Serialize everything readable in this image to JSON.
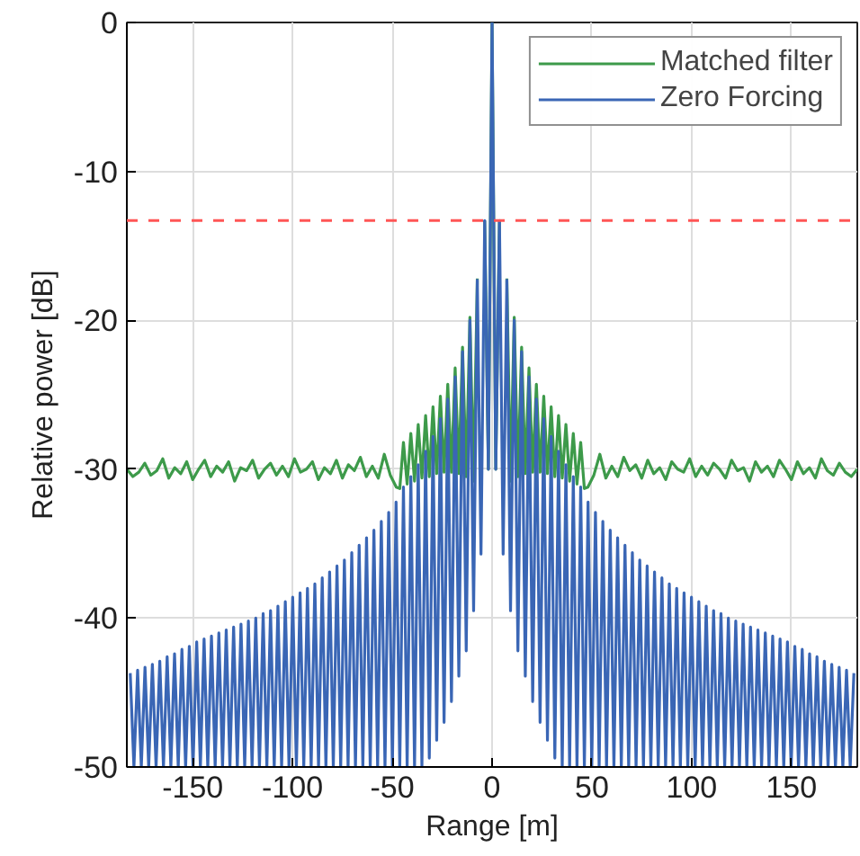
{
  "chart_data": {
    "type": "line",
    "xlabel": "Range [m]",
    "ylabel": "Relative power [dB]",
    "xlim": [
      -183,
      183
    ],
    "ylim": [
      -50,
      0
    ],
    "xticks": [
      -150,
      -100,
      -50,
      0,
      50,
      100,
      150
    ],
    "yticks": [
      -50,
      -40,
      -30,
      -20,
      -10,
      0
    ],
    "grid": true,
    "legend": "top right",
    "line_style": "solid",
    "ref_lines": [
      {
        "axis": "y",
        "value": -13.3,
        "color": "#ff5555",
        "line_style": "dashed"
      }
    ],
    "series": [
      {
        "name": "Matched filter",
        "color": "#3d9a4a",
        "x": [
          -183,
          -180,
          -177,
          -174,
          -171,
          -168,
          -165,
          -162,
          -159,
          -156,
          -153,
          -150,
          -147,
          -144,
          -141,
          -138,
          -135,
          -132,
          -129,
          -126,
          -123,
          -120,
          -117,
          -114,
          -111,
          -108,
          -105,
          -102,
          -99,
          -96,
          -93,
          -90,
          -87,
          -84,
          -81,
          -78,
          -75,
          -72,
          -69,
          -66,
          -63,
          -60,
          -57,
          -54,
          -51,
          -48,
          -46.25,
          -44.4,
          -42.55,
          -40.7,
          -38.85,
          -37,
          -35.15,
          -33.3,
          -31.45,
          -29.6,
          -27.75,
          -25.9,
          -24.05,
          -22.2,
          -20.35,
          -18.5,
          -16.65,
          -14.8,
          -12.95,
          -11.1,
          -9.25,
          -7.4,
          -5.55,
          -3.7,
          -1.85,
          0,
          1.85,
          3.7,
          5.55,
          7.4,
          9.25,
          11.1,
          12.95,
          14.8,
          16.65,
          18.5,
          20.35,
          22.2,
          24.05,
          25.9,
          27.75,
          29.6,
          31.45,
          33.3,
          35.15,
          37,
          38.85,
          40.7,
          42.55,
          44.4,
          46.25,
          48,
          51,
          54,
          57,
          60,
          63,
          66,
          69,
          72,
          75,
          78,
          81,
          84,
          87,
          90,
          93,
          96,
          99,
          102,
          105,
          108,
          111,
          114,
          117,
          120,
          123,
          126,
          129,
          132,
          135,
          138,
          141,
          144,
          147,
          150,
          153,
          156,
          159,
          162,
          165,
          168,
          171,
          174,
          177,
          180,
          183
        ],
        "values": [
          -30.0,
          -30.5,
          -30.2,
          -29.6,
          -30.4,
          -30.1,
          -29.3,
          -30.6,
          -29.9,
          -30.3,
          -29.5,
          -30.7,
          -30.0,
          -29.4,
          -30.5,
          -29.8,
          -30.2,
          -29.5,
          -30.8,
          -29.9,
          -30.1,
          -29.4,
          -30.6,
          -30.0,
          -29.6,
          -30.4,
          -29.8,
          -30.5,
          -29.3,
          -30.2,
          -30.0,
          -29.5,
          -30.7,
          -29.9,
          -30.3,
          -29.4,
          -30.6,
          -29.7,
          -30.1,
          -29.2,
          -30.5,
          -29.8,
          -30.6,
          -29.0,
          -30.4,
          -31.2,
          -31.3,
          -28.2,
          -31.0,
          -27.6,
          -30.8,
          -27.0,
          -30.6,
          -26.4,
          -30.5,
          -25.8,
          -30.3,
          -25.1,
          -30.2,
          -24.3,
          -30.2,
          -23.2,
          -30.3,
          -21.8,
          -30.5,
          -19.8,
          -30.8,
          -17.2,
          null,
          -13.3,
          -30.0,
          0,
          -30.0,
          -13.3,
          null,
          -17.2,
          -30.8,
          -19.8,
          -30.5,
          -21.8,
          -30.3,
          -23.2,
          -30.2,
          -24.3,
          -30.2,
          -25.1,
          -30.3,
          -25.8,
          -30.5,
          -26.4,
          -30.6,
          -27.0,
          -30.8,
          -27.6,
          -31.0,
          -28.2,
          -31.3,
          -31.2,
          -30.4,
          -29.0,
          -30.6,
          -29.8,
          -30.5,
          -29.2,
          -30.1,
          -29.7,
          -30.6,
          -29.4,
          -30.3,
          -29.9,
          -30.7,
          -29.5,
          -30.0,
          -30.2,
          -29.3,
          -30.5,
          -29.8,
          -30.4,
          -29.6,
          -30.0,
          -30.6,
          -29.4,
          -30.1,
          -29.9,
          -30.8,
          -29.5,
          -30.2,
          -29.8,
          -30.5,
          -29.4,
          -30.0,
          -30.7,
          -29.5,
          -30.3,
          -29.9,
          -30.6,
          -29.3,
          -30.1,
          -30.4,
          -29.6,
          -30.2,
          -30.5,
          -30.0
        ]
      },
      {
        "name": "Zero Forcing",
        "color": "#3a66b5",
        "x": [
          -181.3,
          -179.45,
          -177.6,
          -175.75,
          -173.9,
          -172.05,
          -170.2,
          -168.35,
          -166.5,
          -164.65,
          -162.8,
          -160.95,
          -159.1,
          -157.25,
          -155.4,
          -153.55,
          -151.7,
          -149.85,
          -148,
          -146.15,
          -144.3,
          -142.45,
          -140.6,
          -138.75,
          -136.9,
          -135.05,
          -133.2,
          -131.35,
          -129.5,
          -127.65,
          -125.8,
          -123.95,
          -122.1,
          -120.25,
          -118.4,
          -116.55,
          -114.7,
          -112.85,
          -111,
          -109.15,
          -107.3,
          -105.45,
          -103.6,
          -101.75,
          -99.9,
          -98.05,
          -96.2,
          -94.35,
          -92.5,
          -90.65,
          -88.8,
          -86.95,
          -85.1,
          -83.25,
          -81.4,
          -79.55,
          -77.7,
          -75.85,
          -74,
          -72.15,
          -70.3,
          -68.45,
          -66.6,
          -64.75,
          -62.9,
          -61.05,
          -59.2,
          -57.35,
          -55.5,
          -53.65,
          -51.8,
          -49.95,
          -48.1,
          -46.25,
          -44.4,
          -42.55,
          -40.7,
          -38.85,
          -37,
          -35.15,
          -33.3,
          -31.45,
          -29.6,
          -27.75,
          -25.9,
          -24.05,
          -22.2,
          -20.35,
          -18.5,
          -16.65,
          -14.8,
          -12.95,
          -11.1,
          -9.25,
          -7.4,
          -5.55,
          -3.7,
          -1.85,
          0,
          1.85,
          3.7,
          5.55,
          7.4,
          9.25,
          11.1,
          12.95,
          14.8,
          16.65,
          18.5,
          20.35,
          22.2,
          24.05,
          25.9,
          27.75,
          29.6,
          31.45,
          33.3,
          35.15,
          37,
          38.85,
          40.7,
          42.55,
          44.4,
          46.25,
          48.1,
          49.95,
          51.8,
          53.65,
          55.5,
          57.35,
          59.2,
          61.05,
          62.9,
          64.75,
          66.6,
          68.45,
          70.3,
          72.15,
          74,
          75.85,
          77.7,
          79.55,
          81.4,
          83.25,
          85.1,
          86.95,
          88.8,
          90.65,
          92.5,
          94.35,
          96.2,
          98.05,
          99.9,
          101.75,
          103.6,
          105.45,
          107.3,
          109.15,
          111,
          112.85,
          114.7,
          116.55,
          118.4,
          120.25,
          122.1,
          123.95,
          125.8,
          127.65,
          129.5,
          131.35,
          133.2,
          135.05,
          136.9,
          138.75,
          140.6,
          142.45,
          144.3,
          146.15,
          148,
          149.85,
          151.7,
          153.55,
          155.4,
          157.25,
          159.1,
          160.95,
          162.8,
          164.65,
          166.5,
          168.35,
          170.2,
          172.05,
          173.9,
          175.75,
          177.6,
          179.45,
          181.3
        ],
        "values": [
          -43.7,
          -50,
          -43.5,
          -50,
          -43.3,
          -50,
          -43.1,
          -50,
          -42.9,
          -50,
          -42.6,
          -50,
          -42.4,
          -50,
          -42.1,
          -50,
          -41.9,
          -50,
          -41.6,
          -50,
          -41.4,
          -50,
          -41.2,
          -50,
          -41.0,
          -50,
          -40.8,
          -50,
          -40.6,
          -50,
          -40.4,
          -50,
          -40.2,
          -50,
          -40.0,
          -50,
          -39.7,
          -50,
          -39.5,
          -50,
          -39.2,
          -50,
          -38.9,
          -50,
          -38.6,
          -50,
          -38.3,
          -50,
          -38.0,
          -50,
          -37.7,
          -50,
          -37.3,
          -50,
          -36.9,
          -50,
          -36.5,
          -50,
          -36.1,
          -50,
          -35.6,
          -50,
          -35.1,
          -50,
          -34.6,
          -50,
          -34.1,
          -50,
          -33.5,
          -50,
          -32.9,
          -50,
          -32.2,
          -50,
          -31.2,
          -50,
          -30.5,
          -50,
          -29.7,
          -50,
          -28.8,
          -49.4,
          -27.8,
          -48.2,
          -26.6,
          -47,
          -25.3,
          -45.6,
          -23.8,
          -43.9,
          -22.1,
          -42.2,
          -20,
          -39.5,
          -17.3,
          -35.7,
          -13.3,
          -30,
          0,
          -30,
          -13.3,
          -35.7,
          -17.3,
          -39.5,
          -20,
          -42.2,
          -22.1,
          -43.9,
          -23.8,
          -45.6,
          -25.3,
          -47,
          -26.6,
          -48.2,
          -27.8,
          -49.4,
          -28.8,
          -50,
          -29.7,
          -50,
          -30.5,
          -50,
          -31.2,
          -50,
          -32.2,
          -50,
          -32.9,
          -50,
          -33.5,
          -50,
          -34.1,
          -50,
          -34.6,
          -50,
          -35.1,
          -50,
          -35.6,
          -50,
          -36.1,
          -50,
          -36.5,
          -50,
          -36.9,
          -50,
          -37.3,
          -50,
          -37.7,
          -50,
          -38.0,
          -50,
          -38.3,
          -50,
          -38.6,
          -50,
          -38.9,
          -50,
          -39.2,
          -50,
          -39.5,
          -50,
          -39.7,
          -50,
          -40.0,
          -50,
          -40.2,
          -50,
          -40.4,
          -50,
          -40.6,
          -50,
          -40.8,
          -50,
          -41.0,
          -50,
          -41.2,
          -50,
          -41.4,
          -50,
          -41.6,
          -50,
          -41.9,
          -50,
          -42.1,
          -50,
          -42.4,
          -50,
          -42.6,
          -50,
          -42.9,
          -50,
          -43.1,
          -50,
          -43.3,
          -50,
          -43.5,
          -50,
          -43.7
        ]
      }
    ]
  }
}
